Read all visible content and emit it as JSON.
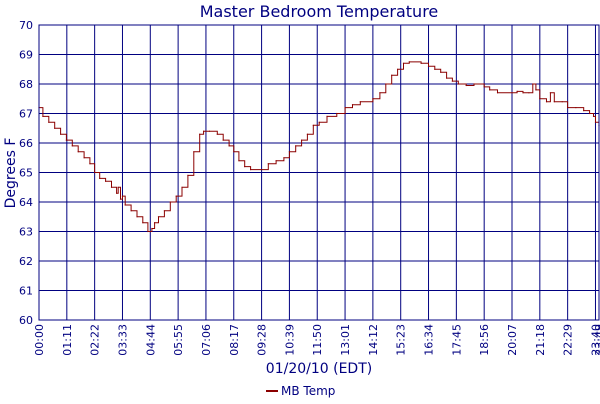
{
  "chart_data": {
    "type": "line",
    "title": "Master Bedroom Temperature",
    "xlabel": "01/20/10 (EDT)",
    "ylabel": "Degrees F",
    "ylim": [
      60,
      70
    ],
    "yticks": [
      "60",
      "61",
      "62",
      "63",
      "64",
      "65",
      "66",
      "67",
      "68",
      "69",
      "70"
    ],
    "xticks": [
      "00:00",
      "01:11",
      "02:22",
      "03:33",
      "04:44",
      "05:55",
      "07:06",
      "08:17",
      "09:28",
      "10:39",
      "11:50",
      "13:01",
      "14:12",
      "15:23",
      "16:34",
      "17:45",
      "18:56",
      "20:07",
      "21:18",
      "22:29",
      "23:40",
      "23:49"
    ],
    "grid": true,
    "legend": "bottom-center",
    "colors": {
      "series": "#8b0000",
      "grid": "#000080",
      "text": "#000080",
      "background": "#ffffff"
    },
    "series": [
      {
        "name": "MB Temp",
        "points": [
          [
            "00:00",
            67.2
          ],
          [
            "00:10",
            66.9
          ],
          [
            "00:25",
            66.7
          ],
          [
            "00:40",
            66.5
          ],
          [
            "00:55",
            66.3
          ],
          [
            "01:10",
            66.1
          ],
          [
            "01:25",
            65.9
          ],
          [
            "01:40",
            65.7
          ],
          [
            "01:55",
            65.5
          ],
          [
            "02:10",
            65.3
          ],
          [
            "02:22",
            65.0
          ],
          [
            "02:35",
            64.8
          ],
          [
            "02:50",
            64.7
          ],
          [
            "03:05",
            64.5
          ],
          [
            "03:18",
            64.3
          ],
          [
            "03:22",
            64.5
          ],
          [
            "03:28",
            64.1
          ],
          [
            "03:33",
            64.2
          ],
          [
            "03:40",
            63.9
          ],
          [
            "03:55",
            63.7
          ],
          [
            "04:10",
            63.5
          ],
          [
            "04:25",
            63.3
          ],
          [
            "04:38",
            63.0
          ],
          [
            "04:48",
            63.1
          ],
          [
            "04:55",
            63.3
          ],
          [
            "05:05",
            63.5
          ],
          [
            "05:20",
            63.7
          ],
          [
            "05:35",
            64.0
          ],
          [
            "05:50",
            64.2
          ],
          [
            "06:05",
            64.5
          ],
          [
            "06:20",
            64.9
          ],
          [
            "06:35",
            65.7
          ],
          [
            "06:50",
            66.3
          ],
          [
            "07:00",
            66.4
          ],
          [
            "07:15",
            66.4
          ],
          [
            "07:35",
            66.3
          ],
          [
            "07:50",
            66.1
          ],
          [
            "08:05",
            65.9
          ],
          [
            "08:17",
            65.7
          ],
          [
            "08:30",
            65.4
          ],
          [
            "08:45",
            65.2
          ],
          [
            "09:00",
            65.1
          ],
          [
            "09:28",
            65.1
          ],
          [
            "09:45",
            65.3
          ],
          [
            "10:05",
            65.4
          ],
          [
            "10:25",
            65.5
          ],
          [
            "10:39",
            65.7
          ],
          [
            "10:55",
            65.9
          ],
          [
            "11:10",
            66.1
          ],
          [
            "11:25",
            66.3
          ],
          [
            "11:40",
            66.6
          ],
          [
            "11:55",
            66.7
          ],
          [
            "12:15",
            66.9
          ],
          [
            "12:40",
            67.0
          ],
          [
            "13:01",
            67.2
          ],
          [
            "13:20",
            67.3
          ],
          [
            "13:40",
            67.4
          ],
          [
            "14:12",
            67.5
          ],
          [
            "14:30",
            67.7
          ],
          [
            "14:45",
            68.0
          ],
          [
            "15:00",
            68.3
          ],
          [
            "15:15",
            68.5
          ],
          [
            "15:30",
            68.7
          ],
          [
            "15:45",
            68.75
          ],
          [
            "16:15",
            68.7
          ],
          [
            "16:34",
            68.6
          ],
          [
            "16:50",
            68.5
          ],
          [
            "17:05",
            68.4
          ],
          [
            "17:20",
            68.2
          ],
          [
            "17:35",
            68.1
          ],
          [
            "17:50",
            68.0
          ],
          [
            "18:10",
            67.95
          ],
          [
            "18:30",
            68.0
          ],
          [
            "18:56",
            67.9
          ],
          [
            "19:10",
            67.8
          ],
          [
            "19:30",
            67.7
          ],
          [
            "20:07",
            67.7
          ],
          [
            "20:20",
            67.75
          ],
          [
            "20:35",
            67.7
          ],
          [
            "20:50",
            67.7
          ],
          [
            "21:00",
            68.0
          ],
          [
            "21:08",
            67.8
          ],
          [
            "21:18",
            67.5
          ],
          [
            "21:35",
            67.4
          ],
          [
            "21:45",
            67.7
          ],
          [
            "21:55",
            67.4
          ],
          [
            "22:15",
            67.4
          ],
          [
            "22:29",
            67.2
          ],
          [
            "22:50",
            67.2
          ],
          [
            "23:10",
            67.1
          ],
          [
            "23:25",
            67.0
          ],
          [
            "23:35",
            66.9
          ],
          [
            "23:40",
            66.7
          ],
          [
            "23:49",
            66.6
          ]
        ]
      }
    ]
  }
}
